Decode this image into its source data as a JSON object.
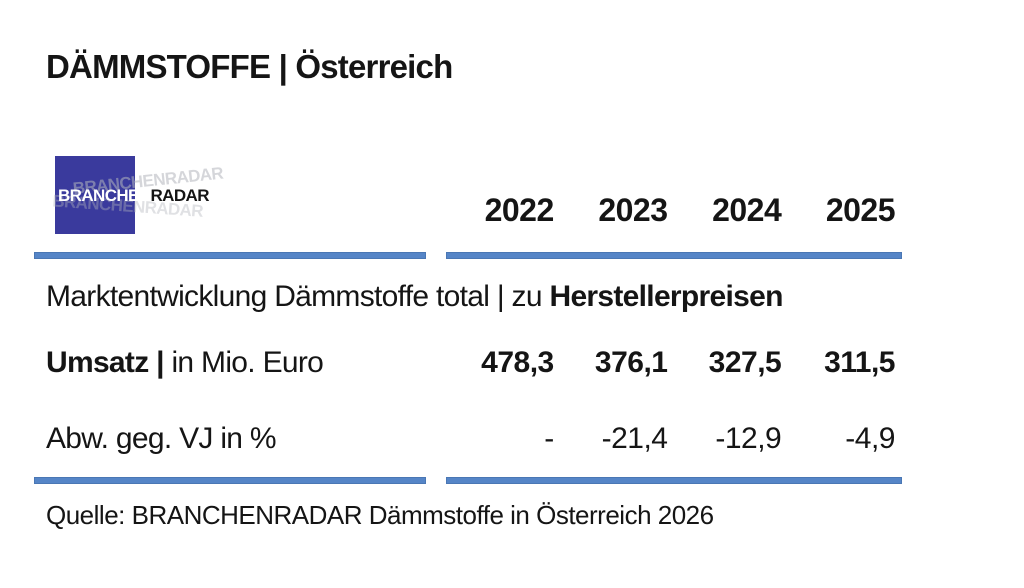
{
  "title": "DÄMMSTOFFE | Österreich",
  "logo": {
    "part1": "BRANCHEN",
    "part2": "RADAR",
    "square_color": "#3a3a9d"
  },
  "colors": {
    "accent_bar": "#5585c7",
    "text": "#151515"
  },
  "table": {
    "year_columns": [
      "2022",
      "2023",
      "2024",
      "2025"
    ],
    "section_prefix": "Marktentwicklung Dämmstoffe total | zu ",
    "section_bold": "Herstellerpreisen",
    "rows": [
      {
        "label_bold": "Umsatz | ",
        "label_rest": "in Mio. Euro",
        "values": [
          "478,3",
          "376,1",
          "327,5",
          "311,5"
        ]
      },
      {
        "label_bold": "",
        "label_rest": "Abw. geg. VJ in %",
        "values": [
          "-",
          "-21,4",
          "-12,9",
          "-4,9"
        ]
      }
    ]
  },
  "source_line": "Quelle: BRANCHENRADAR Dämmstoffe in Österreich 2026",
  "chart_data": {
    "type": "table",
    "title": "DÄMMSTOFFE | Österreich",
    "subtitle": "Marktentwicklung Dämmstoffe total | zu Herstellerpreisen",
    "categories": [
      "2022",
      "2023",
      "2024",
      "2025"
    ],
    "series": [
      {
        "name": "Umsatz | in Mio. Euro",
        "values": [
          478.3,
          376.1,
          327.5,
          311.5
        ]
      },
      {
        "name": "Abw. geg. VJ in %",
        "values": [
          null,
          -21.4,
          -12.9,
          -4.9
        ]
      }
    ],
    "source": "Quelle: BRANCHENRADAR Dämmstoffe in Österreich 2026"
  }
}
